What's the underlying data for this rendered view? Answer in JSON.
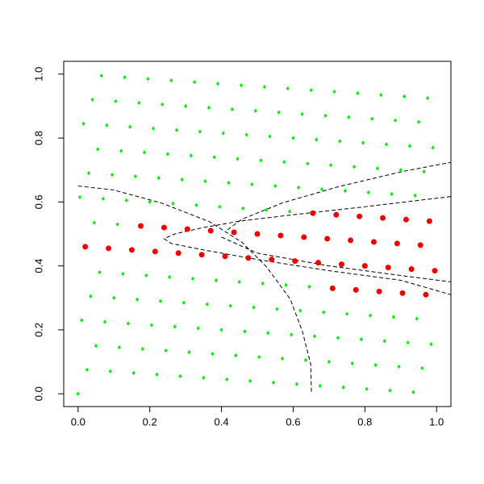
{
  "chart_data": {
    "type": "scatter",
    "xlim": [
      -0.04,
      1.04
    ],
    "ylim": [
      -0.04,
      1.04
    ],
    "xticks": [
      {
        "value": 0,
        "label": "0.0"
      },
      {
        "value": 0.2,
        "label": "0.2"
      },
      {
        "value": 0.4,
        "label": "0.4"
      },
      {
        "value": 0.6,
        "label": "0.6"
      },
      {
        "value": 0.8,
        "label": "0.8"
      },
      {
        "value": 1,
        "label": "1.0"
      }
    ],
    "yticks": [
      {
        "value": 0,
        "label": "0.0"
      },
      {
        "value": 0.2,
        "label": "0.2"
      },
      {
        "value": 0.4,
        "label": "0.4"
      },
      {
        "value": 0.6,
        "label": "0.6"
      },
      {
        "value": 0.8,
        "label": "0.8"
      },
      {
        "value": 1,
        "label": "1.0"
      }
    ],
    "series": [
      {
        "color": "#00ee00",
        "marker": "diamond",
        "x": [
          0,
          0.005,
          0.01,
          0.015,
          0.025,
          0.03,
          0.035,
          0.04,
          0.045,
          0.05,
          0.055,
          0.06,
          0.065,
          0.07,
          0.075,
          0.08,
          0.09,
          0.095,
          0.1,
          0.105,
          0.11,
          0.115,
          0.12,
          0.125,
          0.13,
          0.135,
          0.14,
          0.145,
          0.155,
          0.16,
          0.165,
          0.17,
          0.18,
          0.185,
          0.19,
          0.195,
          0.2,
          0.205,
          0.21,
          0.22,
          0.225,
          0.23,
          0.235,
          0.245,
          0.25,
          0.255,
          0.26,
          0.265,
          0.27,
          0.275,
          0.285,
          0.29,
          0.295,
          0.3,
          0.31,
          0.315,
          0.32,
          0.325,
          0.33,
          0.335,
          0.34,
          0.35,
          0.355,
          0.36,
          0.365,
          0.375,
          0.38,
          0.385,
          0.39,
          0.395,
          0.4,
          0.405,
          0.415,
          0.42,
          0.425,
          0.43,
          0.44,
          0.445,
          0.45,
          0.455,
          0.46,
          0.465,
          0.47,
          0.48,
          0.485,
          0.49,
          0.495,
          0.505,
          0.51,
          0.515,
          0.52,
          0.525,
          0.53,
          0.535,
          0.545,
          0.55,
          0.555,
          0.56,
          0.57,
          0.575,
          0.58,
          0.585,
          0.59,
          0.595,
          0.6,
          0.61,
          0.615,
          0.62,
          0.625,
          0.635,
          0.64,
          0.645,
          0.65,
          0.66,
          0.665,
          0.675,
          0.68,
          0.685,
          0.69,
          0.7,
          0.705,
          0.715,
          0.725,
          0.73,
          0.74,
          0.745,
          0.75,
          0.755,
          0.765,
          0.77,
          0.78,
          0.79,
          0.795,
          0.805,
          0.81,
          0.815,
          0.82,
          0.83,
          0.835,
          0.845,
          0.855,
          0.86,
          0.87,
          0.875,
          0.88,
          0.885,
          0.895,
          0.9,
          0.91,
          0.92,
          0.925,
          0.935,
          0.94,
          0.945,
          0.95,
          0.96,
          0.965,
          0.975,
          0.985,
          0.99
        ],
        "values": [
          0,
          0.615,
          0.23,
          0.845,
          0.075,
          0.69,
          0.305,
          0.92,
          0.535,
          0.15,
          0.765,
          0.38,
          0.995,
          0.61,
          0.225,
          0.84,
          0.07,
          0.685,
          0.3,
          0.915,
          0.53,
          0.145,
          0.76,
          0.375,
          0.99,
          0.605,
          0.22,
          0.835,
          0.065,
          0.68,
          0.295,
          0.91,
          0.14,
          0.755,
          0.37,
          0.985,
          0.6,
          0.215,
          0.83,
          0.06,
          0.675,
          0.29,
          0.905,
          0.135,
          0.75,
          0.365,
          0.98,
          0.595,
          0.21,
          0.825,
          0.055,
          0.67,
          0.285,
          0.9,
          0.13,
          0.745,
          0.36,
          0.975,
          0.59,
          0.205,
          0.82,
          0.05,
          0.665,
          0.28,
          0.895,
          0.125,
          0.74,
          0.355,
          0.97,
          0.585,
          0.2,
          0.815,
          0.045,
          0.66,
          0.275,
          0.89,
          0.12,
          0.735,
          0.35,
          0.965,
          0.58,
          0.195,
          0.81,
          0.04,
          0.655,
          0.27,
          0.885,
          0.115,
          0.73,
          0.345,
          0.96,
          0.575,
          0.19,
          0.805,
          0.035,
          0.65,
          0.265,
          0.88,
          0.11,
          0.725,
          0.34,
          0.955,
          0.57,
          0.185,
          0.8,
          0.03,
          0.645,
          0.26,
          0.875,
          0.105,
          0.72,
          0.335,
          0.95,
          0.18,
          0.795,
          0.025,
          0.64,
          0.255,
          0.87,
          0.1,
          0.715,
          0.945,
          0.175,
          0.79,
          0.02,
          0.635,
          0.25,
          0.865,
          0.095,
          0.71,
          0.94,
          0.17,
          0.785,
          0.015,
          0.63,
          0.245,
          0.86,
          0.09,
          0.705,
          0.935,
          0.165,
          0.78,
          0.01,
          0.625,
          0.24,
          0.855,
          0.085,
          0.7,
          0.93,
          0.16,
          0.775,
          0.005,
          0.62,
          0.235,
          0.85,
          0.08,
          0.695,
          0.925,
          0.155,
          0.77
        ]
      },
      {
        "color": "#ee0000",
        "marker": "circle",
        "x": [
          0.02,
          0.085,
          0.15,
          0.175,
          0.215,
          0.24,
          0.28,
          0.305,
          0.345,
          0.37,
          0.41,
          0.435,
          0.475,
          0.5,
          0.54,
          0.565,
          0.605,
          0.63,
          0.655,
          0.67,
          0.695,
          0.71,
          0.72,
          0.735,
          0.76,
          0.775,
          0.785,
          0.8,
          0.825,
          0.84,
          0.85,
          0.865,
          0.89,
          0.905,
          0.915,
          0.93,
          0.955,
          0.97,
          0.98,
          0.995
        ],
        "values": [
          0.46,
          0.455,
          0.45,
          0.525,
          0.445,
          0.52,
          0.44,
          0.515,
          0.435,
          0.51,
          0.43,
          0.505,
          0.425,
          0.5,
          0.42,
          0.495,
          0.415,
          0.49,
          0.565,
          0.41,
          0.485,
          0.33,
          0.56,
          0.405,
          0.48,
          0.325,
          0.555,
          0.4,
          0.475,
          0.32,
          0.55,
          0.395,
          0.47,
          0.315,
          0.545,
          0.39,
          0.465,
          0.31,
          0.54,
          0.385
        ]
      }
    ],
    "curves": [
      {
        "x": [
          0,
          0.097,
          0.232,
          0.367,
          0.457,
          0.525,
          0.592,
          0.626,
          0.649,
          0.651
        ],
        "values": [
          0.65,
          0.638,
          0.597,
          0.538,
          0.474,
          0.398,
          0.296,
          0.194,
          0.092,
          0
        ]
      },
      {
        "x": [
          0.417,
          0.457,
          0.57,
          0.727,
          0.908,
          1.04
        ],
        "values": [
          0.513,
          0.546,
          0.597,
          0.648,
          0.696,
          0.724
        ]
      },
      {
        "x": [
          1.04,
          0.8,
          0.6,
          0.45,
          0.35,
          0.27,
          0.24,
          0.26,
          0.35,
          0.5,
          0.7,
          0.9,
          1.04
        ],
        "values": [
          0.617,
          0.585,
          0.56,
          0.54,
          0.52,
          0.5,
          0.485,
          0.47,
          0.45,
          0.42,
          0.385,
          0.355,
          0.31
        ]
      },
      {
        "x": [
          0.4,
          0.5,
          0.7,
          0.9,
          1.04
        ],
        "values": [
          0.49,
          0.44,
          0.4,
          0.37,
          0.35
        ]
      }
    ],
    "curve_color": "#000000"
  }
}
